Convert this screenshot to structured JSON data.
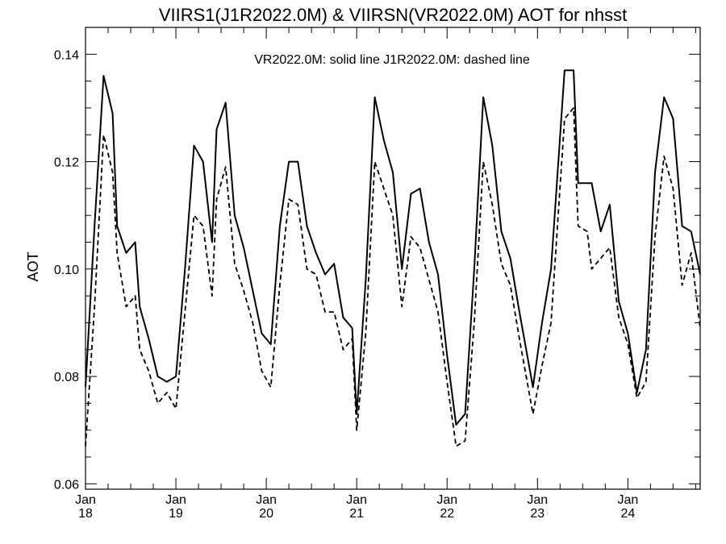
{
  "chart_data": {
    "type": "line",
    "title": "VIIRS1(J1R2022.0M) & VIIRSN(VR2022.0M)  AOT for nhsst",
    "annotation": "VR2022.0M: solid line   J1R2022.0M: dashed line",
    "xlabel": "",
    "ylabel": "AOT",
    "ylim": [
      0.059,
      0.145
    ],
    "xlim": [
      0,
      6.8
    ],
    "grid": false,
    "y_ticks": [
      "0.06",
      "0.08",
      "0.10",
      "0.12",
      "0.14"
    ],
    "x_ticks": [
      {
        "month": "Jan",
        "day": "18"
      },
      {
        "month": "Jan",
        "day": "19"
      },
      {
        "month": "Jan",
        "day": "20"
      },
      {
        "month": "Jan",
        "day": "21"
      },
      {
        "month": "Jan",
        "day": "22"
      },
      {
        "month": "Jan",
        "day": "23"
      },
      {
        "month": "Jan",
        "day": "24"
      }
    ],
    "x_unit": "days from Jan 18",
    "series": [
      {
        "name": "VR2022.0M",
        "style": "solid",
        "x": [
          0,
          0.1,
          0.2,
          0.3,
          0.35,
          0.45,
          0.55,
          0.6,
          0.7,
          0.8,
          0.9,
          1.0,
          1.1,
          1.2,
          1.3,
          1.4,
          1.45,
          1.55,
          1.65,
          1.75,
          1.85,
          1.95,
          2.05,
          2.15,
          2.25,
          2.35,
          2.45,
          2.55,
          2.65,
          2.75,
          2.85,
          2.95,
          3.0,
          3.1,
          3.2,
          3.3,
          3.4,
          3.5,
          3.6,
          3.7,
          3.8,
          3.9,
          4.0,
          4.1,
          4.2,
          4.3,
          4.4,
          4.5,
          4.6,
          4.7,
          4.8,
          4.95,
          5.05,
          5.15,
          5.3,
          5.4,
          5.45,
          5.55,
          5.6,
          5.7,
          5.8,
          5.9,
          6.0,
          6.1,
          6.2,
          6.3,
          6.4,
          6.5,
          6.6,
          6.7,
          6.8
        ],
        "y": [
          0.078,
          0.108,
          0.136,
          0.129,
          0.108,
          0.103,
          0.105,
          0.093,
          0.087,
          0.08,
          0.079,
          0.08,
          0.1,
          0.123,
          0.12,
          0.105,
          0.126,
          0.131,
          0.11,
          0.104,
          0.096,
          0.088,
          0.086,
          0.108,
          0.12,
          0.12,
          0.108,
          0.103,
          0.099,
          0.101,
          0.091,
          0.089,
          0.073,
          0.098,
          0.132,
          0.124,
          0.118,
          0.1,
          0.114,
          0.115,
          0.105,
          0.099,
          0.084,
          0.071,
          0.073,
          0.1,
          0.132,
          0.123,
          0.107,
          0.102,
          0.092,
          0.078,
          0.09,
          0.1,
          0.137,
          0.137,
          0.116,
          0.116,
          0.116,
          0.107,
          0.112,
          0.094,
          0.088,
          0.077,
          0.085,
          0.118,
          0.132,
          0.128,
          0.108,
          0.107,
          0.099
        ]
      },
      {
        "name": "J1R2022.0M",
        "style": "dashed",
        "x": [
          0,
          0.1,
          0.2,
          0.3,
          0.35,
          0.45,
          0.55,
          0.6,
          0.7,
          0.8,
          0.9,
          1.0,
          1.1,
          1.2,
          1.3,
          1.4,
          1.45,
          1.55,
          1.65,
          1.75,
          1.85,
          1.95,
          2.05,
          2.15,
          2.25,
          2.35,
          2.45,
          2.55,
          2.65,
          2.75,
          2.85,
          2.95,
          3.0,
          3.1,
          3.2,
          3.3,
          3.4,
          3.5,
          3.6,
          3.7,
          3.8,
          3.9,
          4.0,
          4.1,
          4.2,
          4.3,
          4.4,
          4.5,
          4.6,
          4.7,
          4.8,
          4.95,
          5.05,
          5.15,
          5.3,
          5.4,
          5.45,
          5.55,
          5.6,
          5.7,
          5.8,
          5.9,
          6.0,
          6.1,
          6.2,
          6.3,
          6.4,
          6.5,
          6.6,
          6.7,
          6.8
        ],
        "y": [
          0.067,
          0.093,
          0.125,
          0.118,
          0.103,
          0.093,
          0.095,
          0.085,
          0.081,
          0.075,
          0.077,
          0.074,
          0.092,
          0.11,
          0.108,
          0.095,
          0.113,
          0.119,
          0.101,
          0.096,
          0.09,
          0.081,
          0.078,
          0.097,
          0.113,
          0.112,
          0.1,
          0.099,
          0.092,
          0.092,
          0.085,
          0.087,
          0.07,
          0.088,
          0.12,
          0.115,
          0.11,
          0.093,
          0.106,
          0.104,
          0.098,
          0.092,
          0.079,
          0.067,
          0.068,
          0.09,
          0.12,
          0.112,
          0.101,
          0.097,
          0.087,
          0.073,
          0.082,
          0.09,
          0.128,
          0.13,
          0.108,
          0.107,
          0.1,
          0.102,
          0.104,
          0.091,
          0.086,
          0.076,
          0.079,
          0.106,
          0.121,
          0.115,
          0.097,
          0.103,
          0.089
        ]
      }
    ]
  }
}
